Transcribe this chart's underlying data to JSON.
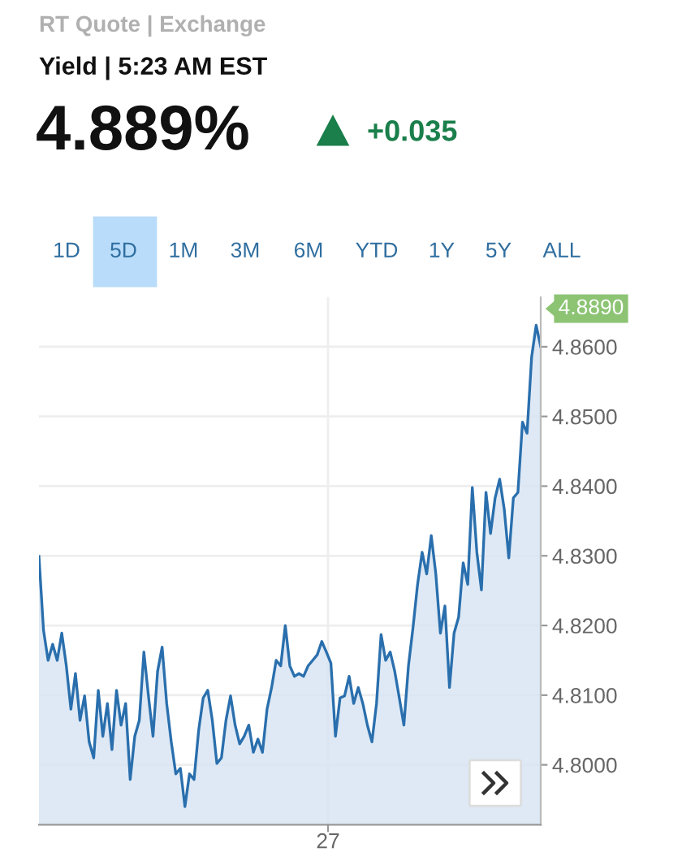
{
  "chart_data": {
    "type": "area",
    "title": "4.889%",
    "annotations": [
      "RT Quote | Exchange",
      "Yield | 5:23 AM EST",
      "+0.035",
      "4.8890",
      "1D",
      "5D",
      "1M",
      "3M",
      "6M",
      "YTD",
      "1Y",
      "5Y",
      "ALL",
      "27"
    ],
    "categories": [
      null,
      null,
      null,
      null,
      null,
      null,
      null,
      null,
      null,
      null,
      null,
      null,
      null,
      null,
      null,
      null,
      null,
      null,
      null,
      null,
      null,
      null,
      null,
      null,
      null,
      null,
      null,
      null,
      null,
      null,
      null,
      null,
      null,
      null,
      null,
      null,
      null,
      null,
      null,
      null,
      null,
      null,
      null,
      null,
      null,
      null,
      null,
      null,
      null,
      null,
      null,
      null,
      null,
      null,
      null,
      null,
      null,
      null,
      null,
      null,
      null,
      null,
      null,
      null,
      null,
      null,
      null,
      null,
      null,
      null,
      null,
      null,
      null,
      null,
      null,
      null,
      null,
      null,
      null,
      null,
      null,
      null,
      null,
      null,
      null,
      null,
      null,
      null,
      null,
      null,
      null,
      null,
      null,
      null,
      null,
      null,
      null,
      null,
      null,
      null,
      null,
      null,
      null,
      null,
      null,
      null,
      null,
      null,
      null,
      null,
      null
    ],
    "series": [
      {
        "color": "#2a6fad",
        "values": [
          4.8299,
          4.8193,
          4.815,
          4.8173,
          4.815,
          4.8189,
          4.8142,
          4.808,
          4.8131,
          4.8064,
          4.8099,
          4.8033,
          4.801,
          4.8107,
          4.8041,
          4.8088,
          4.8022,
          4.8107,
          4.8057,
          4.8088,
          4.7979,
          4.8041,
          4.8064,
          4.8162,
          4.8099,
          4.8041,
          4.8134,
          4.8169,
          4.8088,
          4.8033,
          4.7987,
          4.7995,
          4.794,
          4.7987,
          4.7979,
          4.8049,
          4.8096,
          4.8107,
          4.8064,
          4.8002,
          4.801,
          4.8064,
          4.8099,
          4.8057,
          4.803,
          4.8041,
          4.8057,
          4.8018,
          4.8037,
          4.8018,
          4.808,
          4.8111,
          4.815,
          4.8142,
          4.82,
          4.8142,
          4.8127,
          4.8131,
          4.8127,
          4.8142,
          4.815,
          4.8158,
          4.8177,
          4.8162,
          4.8146,
          4.8041,
          4.8096,
          4.8099,
          4.8127,
          4.8088,
          4.8111,
          4.8088,
          4.8057,
          4.8033,
          4.8088,
          4.8187,
          4.815,
          4.8162,
          4.8134,
          4.8096,
          4.8057,
          4.8142,
          4.8197,
          4.8259,
          4.8305,
          4.8274,
          4.8329,
          4.8274,
          4.8189,
          4.8228,
          4.8111,
          4.8189,
          4.8212,
          4.829,
          4.8259,
          4.8398,
          4.8305,
          4.8251,
          4.8391,
          4.8332,
          4.8383,
          4.841,
          4.8367,
          4.8297,
          4.8383,
          4.8391,
          4.8492,
          4.8476,
          4.8585,
          4.8631,
          4.86
        ]
      }
    ],
    "ylim": [
      4.7914,
      4.8671
    ],
    "yticks": [
      {
        "value": 4.8,
        "label": "4.8000"
      },
      {
        "value": 4.81,
        "label": "4.8100"
      },
      {
        "value": 4.82,
        "label": "4.8200"
      },
      {
        "value": 4.83,
        "label": "4.8300"
      },
      {
        "value": 4.84,
        "label": "4.8400"
      },
      {
        "value": 4.85,
        "label": "4.8500"
      },
      {
        "value": 4.86,
        "label": "4.8600"
      }
    ],
    "grid": true
  }
}
